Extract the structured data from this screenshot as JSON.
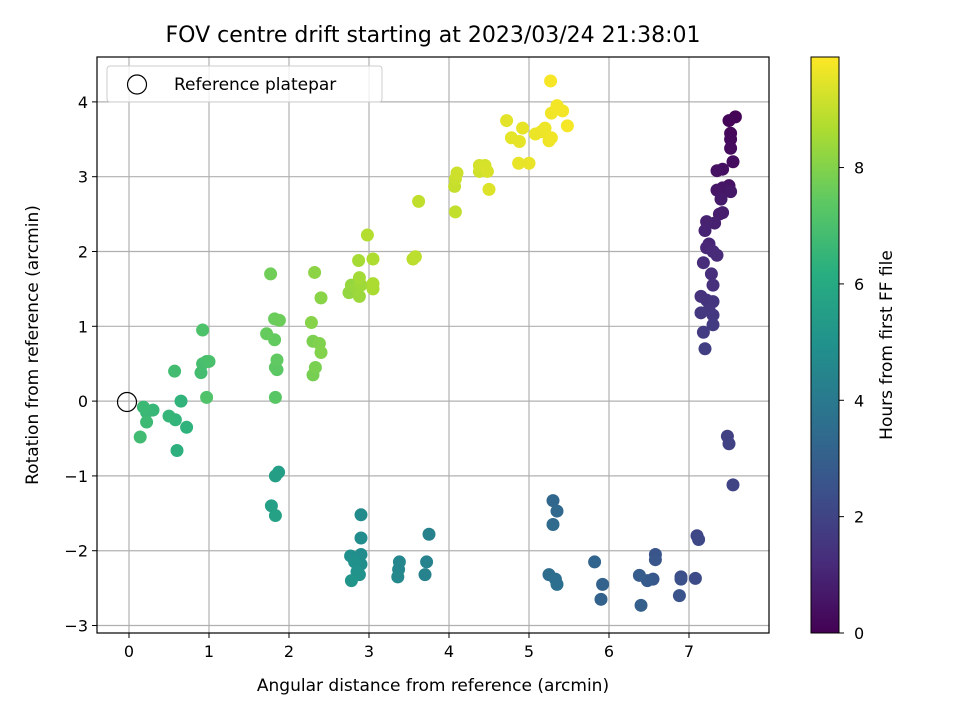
{
  "chart_data": {
    "type": "scatter",
    "title": "FOV centre drift starting at 2023/03/24 21:38:01",
    "xlabel": "Angular distance from reference (arcmin)",
    "ylabel": "Rotation from reference (arcmin)",
    "xlim": [
      -0.4,
      8.0
    ],
    "ylim": [
      -3.1,
      4.6
    ],
    "xticks": [
      0,
      1,
      2,
      3,
      4,
      5,
      6,
      7
    ],
    "yticks": [
      -3,
      -2,
      -1,
      0,
      1,
      2,
      3,
      4
    ],
    "grid": true,
    "legend": {
      "placement": "top-left",
      "entries": [
        "Reference platepar"
      ]
    },
    "reference_point": {
      "x": 0,
      "y": 0
    },
    "colorbar": {
      "label": "Hours from first FF file",
      "colormap": "viridis",
      "range": [
        0,
        9.9
      ],
      "ticks": [
        0,
        2,
        4,
        6,
        8
      ]
    },
    "points": [
      {
        "x": 7.58,
        "y": 3.8,
        "h": 0.05
      },
      {
        "x": 7.5,
        "y": 3.75,
        "h": 0.12
      },
      {
        "x": 7.52,
        "y": 3.58,
        "h": 0.2
      },
      {
        "x": 7.52,
        "y": 3.5,
        "h": 0.25
      },
      {
        "x": 7.52,
        "y": 3.38,
        "h": 0.3
      },
      {
        "x": 7.55,
        "y": 3.2,
        "h": 0.35
      },
      {
        "x": 7.42,
        "y": 3.1,
        "h": 0.4
      },
      {
        "x": 7.35,
        "y": 3.08,
        "h": 0.45
      },
      {
        "x": 7.5,
        "y": 2.88,
        "h": 0.5
      },
      {
        "x": 7.42,
        "y": 2.85,
        "h": 0.55
      },
      {
        "x": 7.35,
        "y": 2.82,
        "h": 0.6
      },
      {
        "x": 7.52,
        "y": 2.8,
        "h": 0.65
      },
      {
        "x": 7.4,
        "y": 2.7,
        "h": 0.7
      },
      {
        "x": 7.42,
        "y": 2.52,
        "h": 0.78
      },
      {
        "x": 7.38,
        "y": 2.5,
        "h": 0.82
      },
      {
        "x": 7.32,
        "y": 2.38,
        "h": 0.88
      },
      {
        "x": 7.22,
        "y": 2.4,
        "h": 0.92
      },
      {
        "x": 7.2,
        "y": 2.28,
        "h": 0.98
      },
      {
        "x": 7.25,
        "y": 2.1,
        "h": 1.05
      },
      {
        "x": 7.22,
        "y": 2.05,
        "h": 1.1
      },
      {
        "x": 7.3,
        "y": 2.0,
        "h": 1.15
      },
      {
        "x": 7.35,
        "y": 1.95,
        "h": 1.2
      },
      {
        "x": 7.18,
        "y": 1.85,
        "h": 1.25
      },
      {
        "x": 7.28,
        "y": 1.7,
        "h": 1.3
      },
      {
        "x": 7.3,
        "y": 1.55,
        "h": 1.35
      },
      {
        "x": 7.15,
        "y": 1.4,
        "h": 1.4
      },
      {
        "x": 7.22,
        "y": 1.35,
        "h": 1.45
      },
      {
        "x": 7.3,
        "y": 1.33,
        "h": 1.5
      },
      {
        "x": 7.25,
        "y": 1.22,
        "h": 1.55
      },
      {
        "x": 7.15,
        "y": 1.18,
        "h": 1.6
      },
      {
        "x": 7.3,
        "y": 1.15,
        "h": 1.65
      },
      {
        "x": 7.3,
        "y": 1.02,
        "h": 1.7
      },
      {
        "x": 7.18,
        "y": 0.92,
        "h": 1.75
      },
      {
        "x": 7.2,
        "y": 0.7,
        "h": 1.8
      },
      {
        "x": 7.48,
        "y": -0.47,
        "h": 1.9
      },
      {
        "x": 7.5,
        "y": -0.57,
        "h": 1.95
      },
      {
        "x": 7.55,
        "y": -1.12,
        "h": 2.0
      },
      {
        "x": 7.1,
        "y": -1.8,
        "h": 2.1
      },
      {
        "x": 7.12,
        "y": -1.85,
        "h": 2.15
      },
      {
        "x": 7.08,
        "y": -2.37,
        "h": 2.25
      },
      {
        "x": 6.9,
        "y": -2.35,
        "h": 2.35
      },
      {
        "x": 6.9,
        "y": -2.38,
        "h": 2.4
      },
      {
        "x": 6.88,
        "y": -2.6,
        "h": 2.5
      },
      {
        "x": 6.58,
        "y": -2.05,
        "h": 2.6
      },
      {
        "x": 6.58,
        "y": -2.12,
        "h": 2.65
      },
      {
        "x": 6.55,
        "y": -2.38,
        "h": 2.7
      },
      {
        "x": 6.48,
        "y": -2.4,
        "h": 2.8
      },
      {
        "x": 6.38,
        "y": -2.33,
        "h": 2.9
      },
      {
        "x": 6.4,
        "y": -2.73,
        "h": 3.0
      },
      {
        "x": 5.92,
        "y": -2.45,
        "h": 3.1
      },
      {
        "x": 5.9,
        "y": -2.65,
        "h": 3.15
      },
      {
        "x": 5.82,
        "y": -2.15,
        "h": 3.2
      },
      {
        "x": 5.3,
        "y": -1.33,
        "h": 3.3
      },
      {
        "x": 5.35,
        "y": -1.47,
        "h": 3.35
      },
      {
        "x": 5.3,
        "y": -1.65,
        "h": 3.4
      },
      {
        "x": 5.25,
        "y": -2.32,
        "h": 3.5
      },
      {
        "x": 5.33,
        "y": -2.38,
        "h": 3.55
      },
      {
        "x": 5.35,
        "y": -2.45,
        "h": 3.6
      },
      {
        "x": 3.75,
        "y": -1.78,
        "h": 4.3
      },
      {
        "x": 3.72,
        "y": -2.15,
        "h": 4.35
      },
      {
        "x": 3.7,
        "y": -2.32,
        "h": 4.4
      },
      {
        "x": 3.38,
        "y": -2.15,
        "h": 4.5
      },
      {
        "x": 3.37,
        "y": -2.25,
        "h": 4.55
      },
      {
        "x": 3.36,
        "y": -2.35,
        "h": 4.6
      },
      {
        "x": 2.9,
        "y": -1.52,
        "h": 4.7
      },
      {
        "x": 2.9,
        "y": -1.83,
        "h": 4.75
      },
      {
        "x": 2.9,
        "y": -2.05,
        "h": 4.8
      },
      {
        "x": 2.9,
        "y": -2.18,
        "h": 4.85
      },
      {
        "x": 2.77,
        "y": -2.07,
        "h": 4.9
      },
      {
        "x": 2.82,
        "y": -2.15,
        "h": 4.95
      },
      {
        "x": 2.85,
        "y": -2.28,
        "h": 5.0
      },
      {
        "x": 2.88,
        "y": -2.32,
        "h": 5.05
      },
      {
        "x": 2.78,
        "y": -2.4,
        "h": 5.1
      },
      {
        "x": 1.87,
        "y": -0.95,
        "h": 5.5
      },
      {
        "x": 1.83,
        "y": -1.0,
        "h": 5.55
      },
      {
        "x": 1.78,
        "y": -1.4,
        "h": 5.6
      },
      {
        "x": 1.83,
        "y": -1.53,
        "h": 5.65
      },
      {
        "x": 0.6,
        "y": -0.66,
        "h": 6.3
      },
      {
        "x": 0.72,
        "y": -0.35,
        "h": 6.35
      },
      {
        "x": 0.65,
        "y": 0.0,
        "h": 6.4
      },
      {
        "x": 0.58,
        "y": -0.25,
        "h": 6.45
      },
      {
        "x": 0.5,
        "y": -0.2,
        "h": 6.5
      },
      {
        "x": 0.3,
        "y": -0.12,
        "h": 6.55
      },
      {
        "x": 0.22,
        "y": -0.15,
        "h": 6.6
      },
      {
        "x": 0.18,
        "y": -0.08,
        "h": 6.65
      },
      {
        "x": 0.22,
        "y": -0.28,
        "h": 6.7
      },
      {
        "x": 0.14,
        "y": -0.48,
        "h": 6.75
      },
      {
        "x": 0.57,
        "y": 0.4,
        "h": 6.8
      },
      {
        "x": 0.9,
        "y": 0.38,
        "h": 6.85
      },
      {
        "x": 0.92,
        "y": 0.5,
        "h": 6.9
      },
      {
        "x": 0.97,
        "y": 0.53,
        "h": 6.95
      },
      {
        "x": 1.0,
        "y": 0.53,
        "h": 7.0
      },
      {
        "x": 0.92,
        "y": 0.95,
        "h": 7.05
      },
      {
        "x": 0.97,
        "y": 0.05,
        "h": 7.1
      },
      {
        "x": 1.83,
        "y": 0.05,
        "h": 7.3
      },
      {
        "x": 1.85,
        "y": 0.42,
        "h": 7.35
      },
      {
        "x": 1.83,
        "y": 0.45,
        "h": 7.4
      },
      {
        "x": 1.85,
        "y": 0.55,
        "h": 7.45
      },
      {
        "x": 1.82,
        "y": 0.82,
        "h": 7.5
      },
      {
        "x": 1.72,
        "y": 0.9,
        "h": 7.55
      },
      {
        "x": 1.82,
        "y": 1.1,
        "h": 7.6
      },
      {
        "x": 1.88,
        "y": 1.08,
        "h": 7.65
      },
      {
        "x": 1.77,
        "y": 1.7,
        "h": 7.7
      },
      {
        "x": 2.3,
        "y": 0.35,
        "h": 7.8
      },
      {
        "x": 2.33,
        "y": 0.45,
        "h": 7.85
      },
      {
        "x": 2.3,
        "y": 0.8,
        "h": 7.9
      },
      {
        "x": 2.38,
        "y": 0.77,
        "h": 7.95
      },
      {
        "x": 2.4,
        "y": 0.65,
        "h": 8.0
      },
      {
        "x": 2.28,
        "y": 1.05,
        "h": 8.05
      },
      {
        "x": 2.4,
        "y": 1.38,
        "h": 8.1
      },
      {
        "x": 2.32,
        "y": 1.72,
        "h": 8.15
      },
      {
        "x": 2.75,
        "y": 1.45,
        "h": 8.25
      },
      {
        "x": 2.78,
        "y": 1.55,
        "h": 8.3
      },
      {
        "x": 2.85,
        "y": 1.5,
        "h": 8.35
      },
      {
        "x": 2.88,
        "y": 1.4,
        "h": 8.4
      },
      {
        "x": 2.9,
        "y": 1.55,
        "h": 8.45
      },
      {
        "x": 2.88,
        "y": 1.65,
        "h": 8.5
      },
      {
        "x": 2.87,
        "y": 1.88,
        "h": 8.55
      },
      {
        "x": 3.05,
        "y": 1.5,
        "h": 8.6
      },
      {
        "x": 3.05,
        "y": 1.57,
        "h": 8.65
      },
      {
        "x": 3.05,
        "y": 1.9,
        "h": 8.7
      },
      {
        "x": 2.98,
        "y": 2.22,
        "h": 8.75
      },
      {
        "x": 3.55,
        "y": 1.9,
        "h": 8.85
      },
      {
        "x": 3.58,
        "y": 1.93,
        "h": 8.9
      },
      {
        "x": 3.62,
        "y": 2.67,
        "h": 8.95
      },
      {
        "x": 4.08,
        "y": 2.53,
        "h": 9.0
      },
      {
        "x": 4.07,
        "y": 2.87,
        "h": 9.05
      },
      {
        "x": 4.08,
        "y": 2.97,
        "h": 9.1
      },
      {
        "x": 4.1,
        "y": 3.05,
        "h": 9.15
      },
      {
        "x": 4.38,
        "y": 3.07,
        "h": 9.2
      },
      {
        "x": 4.38,
        "y": 3.15,
        "h": 9.25
      },
      {
        "x": 4.45,
        "y": 3.15,
        "h": 9.3
      },
      {
        "x": 4.48,
        "y": 3.07,
        "h": 9.35
      },
      {
        "x": 4.5,
        "y": 2.83,
        "h": 9.4
      },
      {
        "x": 4.72,
        "y": 3.75,
        "h": 9.5
      },
      {
        "x": 4.78,
        "y": 3.52,
        "h": 9.52
      },
      {
        "x": 4.88,
        "y": 3.47,
        "h": 9.54
      },
      {
        "x": 4.92,
        "y": 3.65,
        "h": 9.56
      },
      {
        "x": 4.87,
        "y": 3.18,
        "h": 9.58
      },
      {
        "x": 5.0,
        "y": 3.18,
        "h": 9.6
      },
      {
        "x": 5.08,
        "y": 3.57,
        "h": 9.62
      },
      {
        "x": 5.15,
        "y": 3.6,
        "h": 9.64
      },
      {
        "x": 5.2,
        "y": 3.65,
        "h": 9.66
      },
      {
        "x": 5.25,
        "y": 3.48,
        "h": 9.68
      },
      {
        "x": 5.28,
        "y": 3.52,
        "h": 9.7
      },
      {
        "x": 5.28,
        "y": 3.85,
        "h": 9.72
      },
      {
        "x": 5.35,
        "y": 3.95,
        "h": 9.74
      },
      {
        "x": 5.42,
        "y": 3.88,
        "h": 9.76
      },
      {
        "x": 5.48,
        "y": 3.68,
        "h": 9.78
      },
      {
        "x": 5.27,
        "y": 4.28,
        "h": 9.8
      }
    ]
  }
}
